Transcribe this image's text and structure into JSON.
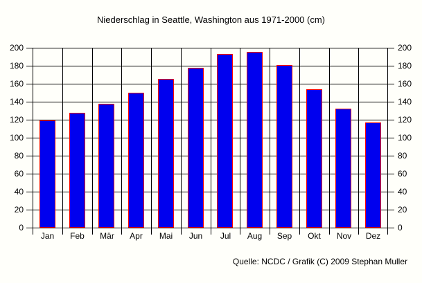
{
  "page": {
    "background": "#fffffa"
  },
  "title": "Niederschlag in Seattle, Washington aus 1971-2000 (cm)",
  "caption": "Quelle: NCDC / Grafik (C) 2009 Stephan Muller",
  "colors": {
    "bar_fill": "#0000ee",
    "bar_border": "#ff0000",
    "grid": "#000000",
    "text": "#000000",
    "background": "#fffffa"
  },
  "chart_data": {
    "type": "bar",
    "title": "Niederschlag in Seattle, Washington aus 1971-2000 (cm)",
    "categories": [
      "Jan",
      "Feb",
      "Mär",
      "Apr",
      "Mai",
      "Jun",
      "Jul",
      "Aug",
      "Sep",
      "Okt",
      "Nov",
      "Dez"
    ],
    "values": [
      119,
      128,
      138,
      150,
      165,
      178,
      193,
      195,
      181,
      154,
      132,
      117
    ],
    "xlabel": "",
    "ylabel": "",
    "ylim": [
      0,
      200
    ],
    "yticks": [
      0,
      20,
      40,
      60,
      80,
      100,
      120,
      140,
      160,
      180,
      200
    ],
    "grid": true,
    "dual_y_axis": true,
    "legend": "none",
    "source": "Quelle: NCDC / Grafik (C) 2009 Stephan Muller"
  }
}
